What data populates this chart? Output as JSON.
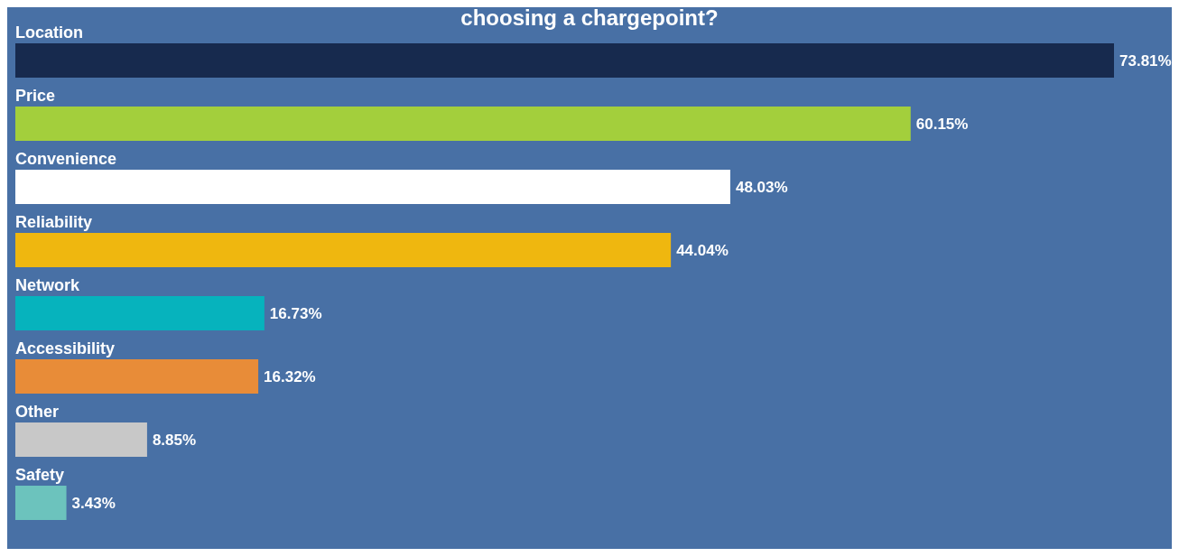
{
  "chart_data": {
    "type": "bar",
    "orientation": "horizontal",
    "title": "choosing a chargepoint?",
    "categories": [
      "Location",
      "Price",
      "Convenience",
      "Reliability",
      "Network",
      "Accessibility",
      "Other",
      "Safety"
    ],
    "values": [
      73.81,
      60.15,
      48.03,
      44.04,
      16.73,
      16.32,
      8.85,
      3.43
    ],
    "value_labels": [
      "73.81%",
      "60.15%",
      "48.03%",
      "44.04%",
      "16.73%",
      "16.32%",
      "8.85%",
      "3.43%"
    ],
    "colors": [
      "#172a4e",
      "#a3cf3c",
      "#ffffff",
      "#efb70f",
      "#06b3bd",
      "#e88c38",
      "#c8c8c8",
      "#6cc3bd"
    ],
    "xlim": [
      0,
      73.81
    ]
  }
}
